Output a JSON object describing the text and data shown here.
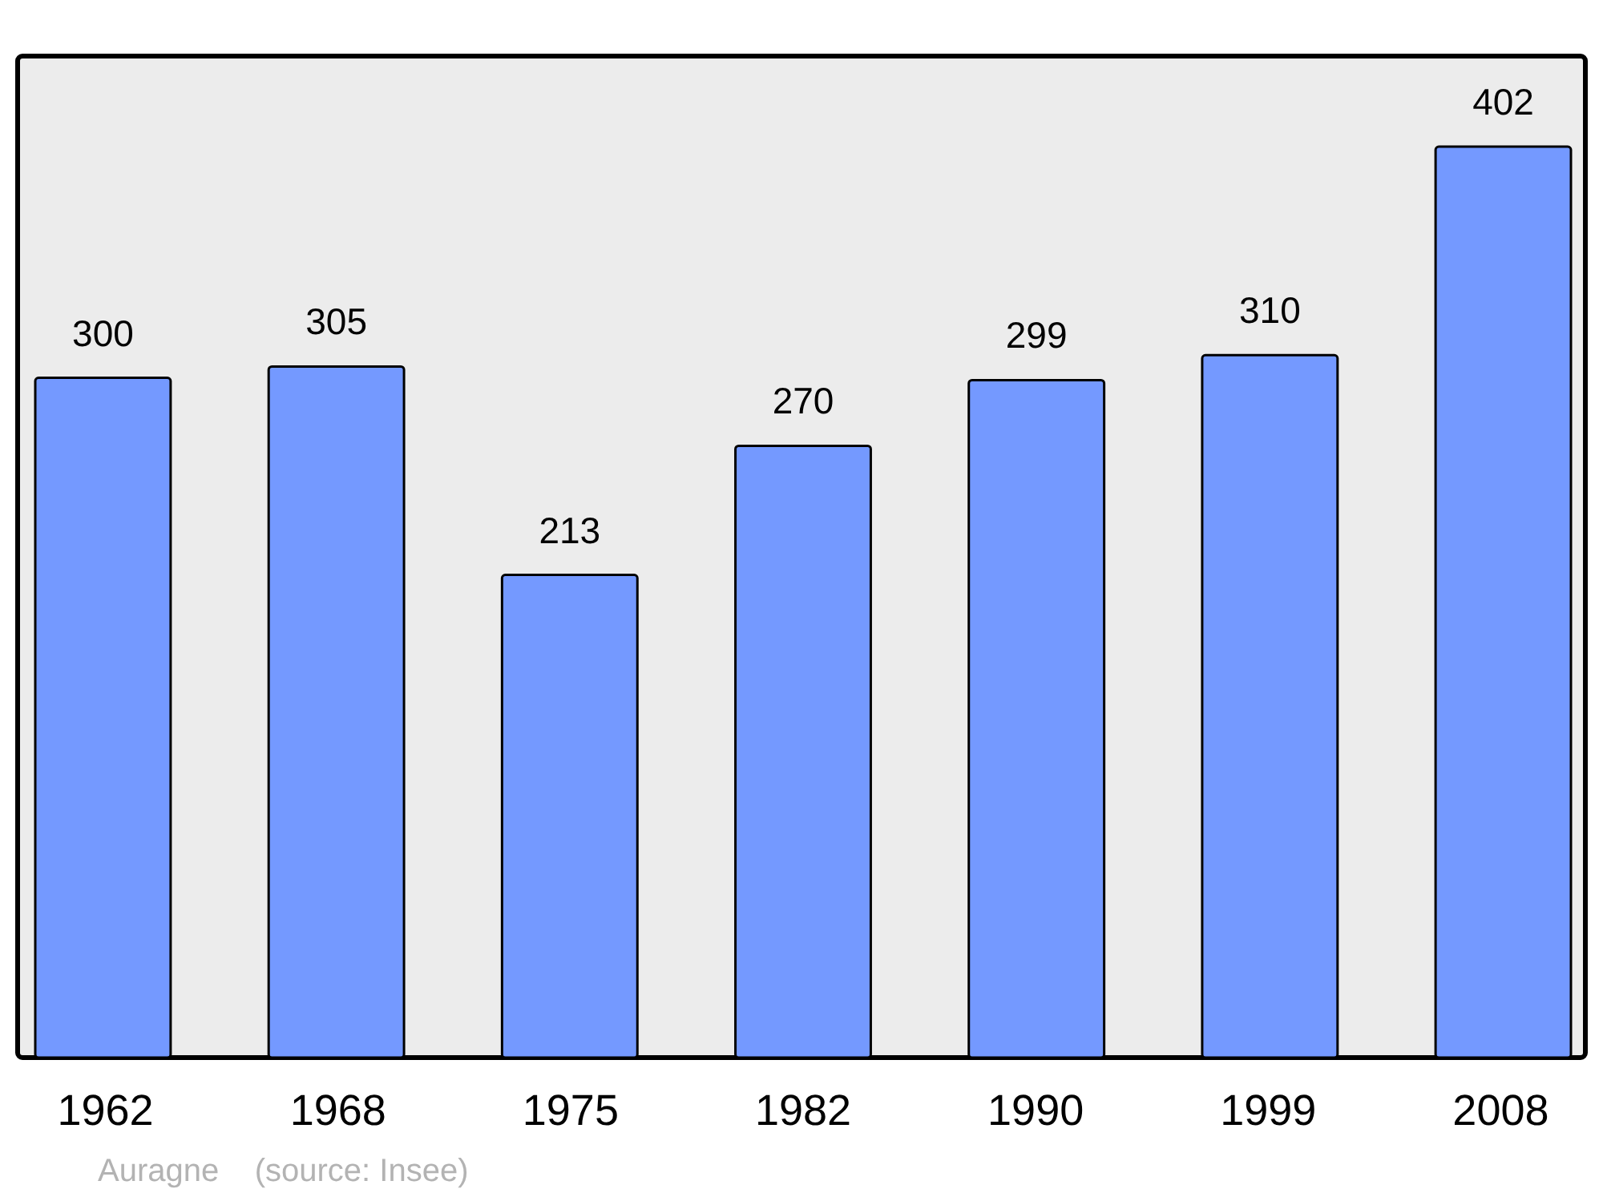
{
  "chart_data": {
    "type": "bar",
    "categories": [
      "1962",
      "1968",
      "1975",
      "1982",
      "1990",
      "1999",
      "2008"
    ],
    "values": [
      300,
      305,
      213,
      270,
      299,
      310,
      402
    ],
    "color": "#7499ff",
    "ylim": [
      0,
      442
    ],
    "tick_labels": "x",
    "data_labels": true,
    "annotations": [
      "Auragne    (source: Insee)"
    ]
  }
}
